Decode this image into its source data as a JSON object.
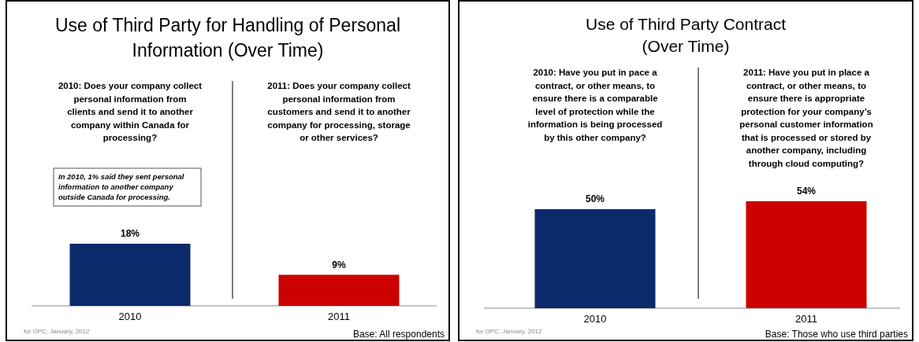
{
  "chart_data": [
    {
      "type": "bar",
      "title": "Use of Third Party for Handling of Personal\nInformation (Over Time)",
      "categories": [
        "2010",
        "2011"
      ],
      "values": [
        18,
        9
      ],
      "colors": [
        "#0b2a6b",
        "#cc0000"
      ],
      "value_labels": [
        "18%",
        "9%"
      ],
      "annotations": [
        "2010: Does your company collect\npersonal information from\nclients and send it to another\ncompany within Canada for\nprocessing?",
        "2011: Does your company collect\npersonal information from\ncustomers and send it to another\ncompany for processing, storage\nor other services?",
        "In 2010, 1% said they sent personal\ninformation to another company\noutside Canada for processing.",
        "for OPC; January, 2012",
        "Base: All respondents"
      ]
    },
    {
      "type": "bar",
      "title": "Use of Third Party Contract\n(Over Time)",
      "categories": [
        "2010",
        "2011"
      ],
      "values": [
        50,
        54
      ],
      "colors": [
        "#0b2a6b",
        "#cc0000"
      ],
      "value_labels": [
        "50%",
        "54%"
      ],
      "annotations": [
        "2010: Have you put in pace a\ncontract, or other means, to\nensure there is a comparable\nlevel of protection while the\ninformation is being processed\nby this other company?",
        "2011: Have you put in place a\ncontract, or other means, to\nensure there is appropriate\nprotection for your company’s\npersonal customer information\nthat is processed or stored by\nanother company, including\nthrough cloud computing?",
        "for OPC; January, 2012",
        "Base: Those who use third parties"
      ]
    }
  ]
}
